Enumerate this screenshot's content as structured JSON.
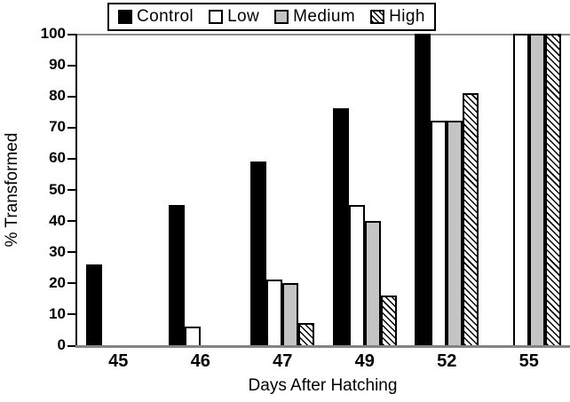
{
  "chart_data": {
    "type": "bar",
    "grouped": true,
    "title": "",
    "xlabel": "Days After Hatching",
    "ylabel": "% Transformed",
    "categories": [
      "45",
      "46",
      "47",
      "49",
      "52",
      "55"
    ],
    "series": [
      {
        "name": "Control",
        "style": "solid-black",
        "values": [
          26,
          45,
          59,
          76,
          100,
          null
        ]
      },
      {
        "name": "Low",
        "style": "white-outline",
        "values": [
          0,
          6,
          21,
          45,
          72,
          100
        ]
      },
      {
        "name": "Medium",
        "style": "solid-gray",
        "values": [
          0,
          0,
          20,
          40,
          72,
          100
        ]
      },
      {
        "name": "High",
        "style": "diagonal-hatch",
        "values": [
          0,
          0,
          7,
          16,
          81,
          100
        ]
      }
    ],
    "ylim": [
      0,
      100
    ],
    "yticks": [
      0,
      10,
      20,
      30,
      40,
      50,
      60,
      70,
      80,
      90,
      100
    ],
    "grid": false,
    "legend_position": "top-center",
    "colors": {
      "control": "#000000",
      "low": "#ffffff",
      "medium": "#c4c4c4",
      "hatch_lines": "#000000",
      "frame": "#8a8a8a",
      "y_axis": "#000000",
      "text": "#000000",
      "background": "#ffffff"
    }
  }
}
